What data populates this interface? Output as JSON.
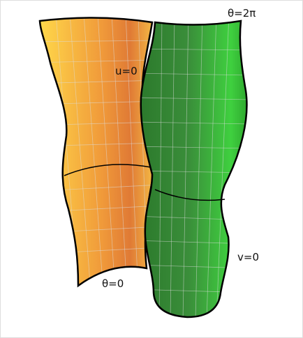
{
  "labels": {
    "theta_top": "θ=2π",
    "u0": "u=0",
    "v0": "v=0",
    "theta_bottom": "θ=0"
  }
}
